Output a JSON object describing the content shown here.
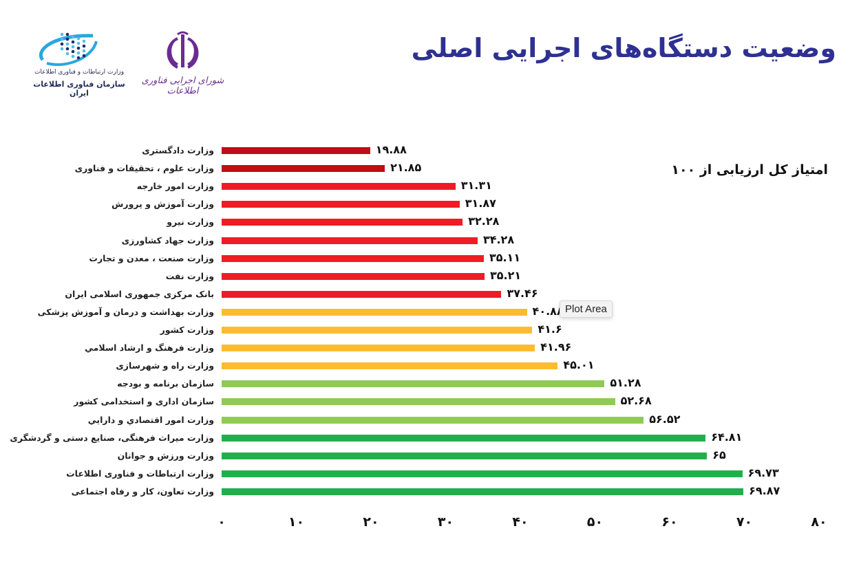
{
  "header": {
    "title": "وضعیت دستگاه‌های اجرایی اصلی",
    "logo_ito": {
      "line1": "وزارت ارتباطات و فناوری اطلاعات",
      "line2": "سازمان فناوری اطلاعات ایران"
    },
    "logo_council": {
      "caption": "شورای اجرایی فناوری اطلاعات"
    }
  },
  "tooltip": {
    "label": "Plot Area"
  },
  "colors": {
    "dark_red": "#c00d17",
    "red": "#ee1c25",
    "orange": "#fdbb30",
    "light_green": "#8fca55",
    "green": "#20b04b",
    "title": "#2e3192"
  },
  "chart_data": {
    "type": "bar",
    "orientation": "horizontal",
    "title": "وضعیت دستگاه‌های اجرایی اصلی",
    "subtitle": "امتیاز کل ارزیابی از ۱۰۰",
    "xlabel": "",
    "ylabel": "",
    "xlim": [
      0,
      80
    ],
    "x_ticks": [
      0,
      10,
      20,
      30,
      40,
      50,
      60,
      70,
      80
    ],
    "x_tick_labels": [
      "۰",
      "۱۰",
      "۲۰",
      "۳۰",
      "۴۰",
      "۵۰",
      "۶۰",
      "۷۰",
      "۸۰"
    ],
    "grid": false,
    "legend": null,
    "categories": [
      "وزارت دادگستری",
      "وزارت علوم ، تحقیقات و فناوری",
      "وزارت امور خارجه",
      "وزارت آموزش و پرورش",
      "وزارت نیرو",
      "وزارت جهاد کشاورزی",
      "وزارت صنعت ، معدن و تجارت",
      "وزارت نفت",
      "بانک مرکزی جمهوری اسلامی ایران",
      "وزارت بهداشت و درمان و آموزش پزشکی",
      "وزارت کشور",
      "وزارت فرهنگ و ارشاد اسلامي",
      "وزارت راه و شهرسازی",
      "سازمان برنامه و بودجه",
      "سازمان اداری و استخدامی کشور",
      "وزارت امور اقتصادي و دارايي",
      "وزارت میراث فرهنگی، صنایع دستی و گردشگری",
      "وزارت ورزش و جوانان",
      "وزارت ارتباطات و فناوری اطلاعات",
      "وزارت تعاون، کار و رفاه اجتماعی"
    ],
    "values": [
      19.88,
      21.85,
      31.31,
      31.87,
      32.28,
      34.28,
      35.11,
      35.21,
      37.46,
      40.88,
      41.6,
      41.96,
      45.01,
      51.28,
      52.68,
      56.52,
      64.81,
      65,
      69.73,
      69.87
    ],
    "value_labels": [
      "۱۹.۸۸",
      "۲۱.۸۵",
      "۳۱.۳۱",
      "۳۱.۸۷",
      "۳۲.۲۸",
      "۳۴.۲۸",
      "۳۵.۱۱",
      "۳۵.۲۱",
      "۳۷.۴۶",
      "۴۰.۸۸",
      "۴۱.۶",
      "۴۱.۹۶",
      "۴۵.۰۱",
      "۵۱.۲۸",
      "۵۲.۶۸",
      "۵۶.۵۲",
      "۶۴.۸۱",
      "۶۵",
      "۶۹.۷۳",
      "۶۹.۸۷"
    ],
    "bar_colors": [
      "#c00d17",
      "#c00d17",
      "#ee1c25",
      "#ee1c25",
      "#ee1c25",
      "#ee1c25",
      "#ee1c25",
      "#ee1c25",
      "#ee1c25",
      "#fdbb30",
      "#fdbb30",
      "#fdbb30",
      "#fdbb30",
      "#8fca55",
      "#8fca55",
      "#8fca55",
      "#20b04b",
      "#20b04b",
      "#20b04b",
      "#20b04b"
    ]
  }
}
